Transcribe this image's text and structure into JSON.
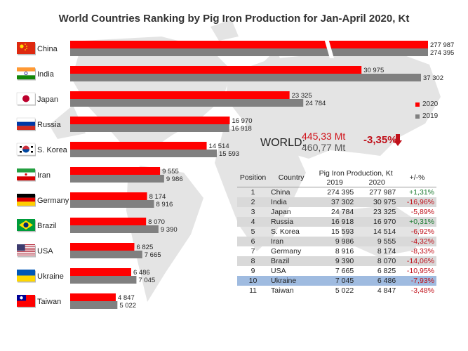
{
  "title": "World Countries Ranking by Pig Iron Production for Jan-April 2020, Kt",
  "chart_data": {
    "type": "bar",
    "title": "World Countries Ranking by Pig Iron Production for Jan-April 2020, Kt",
    "orientation": "horizontal",
    "categories": [
      "China",
      "India",
      "Japan",
      "Russia",
      "S. Korea",
      "Iran",
      "Germany",
      "Brazil",
      "USA",
      "Ukraine",
      "Taiwan"
    ],
    "series": [
      {
        "name": "2020",
        "color": "#ff0000",
        "values": [
          277987,
          30975,
          23325,
          16970,
          14514,
          9555,
          8174,
          8070,
          6825,
          6486,
          4847
        ],
        "labels": [
          "277 987",
          "30 975",
          "23 325",
          "16 970",
          "14 514",
          "9 555",
          "8 174",
          "8 070",
          "6 825",
          "6 486",
          "4 847"
        ]
      },
      {
        "name": "2019",
        "color": "#808080",
        "values": [
          274395,
          37302,
          24784,
          16918,
          15593,
          9986,
          8916,
          9390,
          7665,
          7045,
          5022
        ],
        "labels": [
          "274 395",
          "37 302",
          "24 784",
          "16 918",
          "15 593",
          "9 986",
          "8 916",
          "9 390",
          "7 665",
          "7 045",
          "5 022"
        ]
      }
    ],
    "axis_break": true,
    "xlim": [
      0,
      37302
    ],
    "legend": "right",
    "grid": false
  },
  "world": {
    "label": "WORLD:",
    "value_2020": "445,33 Mt",
    "value_2019": "460,77 Mt",
    "change": "-3,35%"
  },
  "legend": {
    "item_2020": "2020",
    "item_2019": "2019"
  },
  "table": {
    "headers": {
      "position": "Position",
      "country": "Country",
      "production": "Pig Iron Production, Kt",
      "y2019": "2019",
      "y2020": "2020",
      "change": "+/-%"
    },
    "rows": [
      {
        "pos": "1",
        "country": "China",
        "v2019": "274 395",
        "v2020": "277 987",
        "pct": "+1,31%"
      },
      {
        "pos": "2",
        "country": "India",
        "v2019": "37 302",
        "v2020": "30 975",
        "pct": "-16,96%"
      },
      {
        "pos": "3",
        "country": "Japan",
        "v2019": "24 784",
        "v2020": "23 325",
        "pct": "-5,89%"
      },
      {
        "pos": "4",
        "country": "Russia",
        "v2019": "16 918",
        "v2020": "16 970",
        "pct": "+0,31%"
      },
      {
        "pos": "5",
        "country": "S. Korea",
        "v2019": "15 593",
        "v2020": "14 514",
        "pct": "-6,92%"
      },
      {
        "pos": "6",
        "country": "Iran",
        "v2019": "9 986",
        "v2020": "9 555",
        "pct": "-4,32%"
      },
      {
        "pos": "7",
        "country": "Germany",
        "v2019": "8 916",
        "v2020": "8 174",
        "pct": "-8,33%"
      },
      {
        "pos": "8",
        "country": "Brazil",
        "v2019": "9 390",
        "v2020": "8 070",
        "pct": "-14,06%"
      },
      {
        "pos": "9",
        "country": "USA",
        "v2019": "7 665",
        "v2020": "6 825",
        "pct": "-10,95%"
      },
      {
        "pos": "10",
        "country": "Ukraine",
        "v2019": "7 045",
        "v2020": "6 486",
        "pct": "-7,93%"
      },
      {
        "pos": "11",
        "country": "Taiwan",
        "v2019": "5 022",
        "v2020": "4 847",
        "pct": "-3,48%"
      }
    ],
    "highlight_position": "10"
  },
  "flags": [
    "china-flag-icon",
    "india-flag-icon",
    "japan-flag-icon",
    "russia-flag-icon",
    "south-korea-flag-icon",
    "iran-flag-icon",
    "germany-flag-icon",
    "brazil-flag-icon",
    "usa-flag-icon",
    "ukraine-flag-icon",
    "taiwan-flag-icon"
  ],
  "colors": {
    "bar_2020": "#ff0000",
    "bar_2019": "#808080",
    "positive": "#1a7a2e",
    "negative": "#c0101a",
    "highlight_row": "#9fbbe0",
    "map": "#e3e3e3"
  }
}
